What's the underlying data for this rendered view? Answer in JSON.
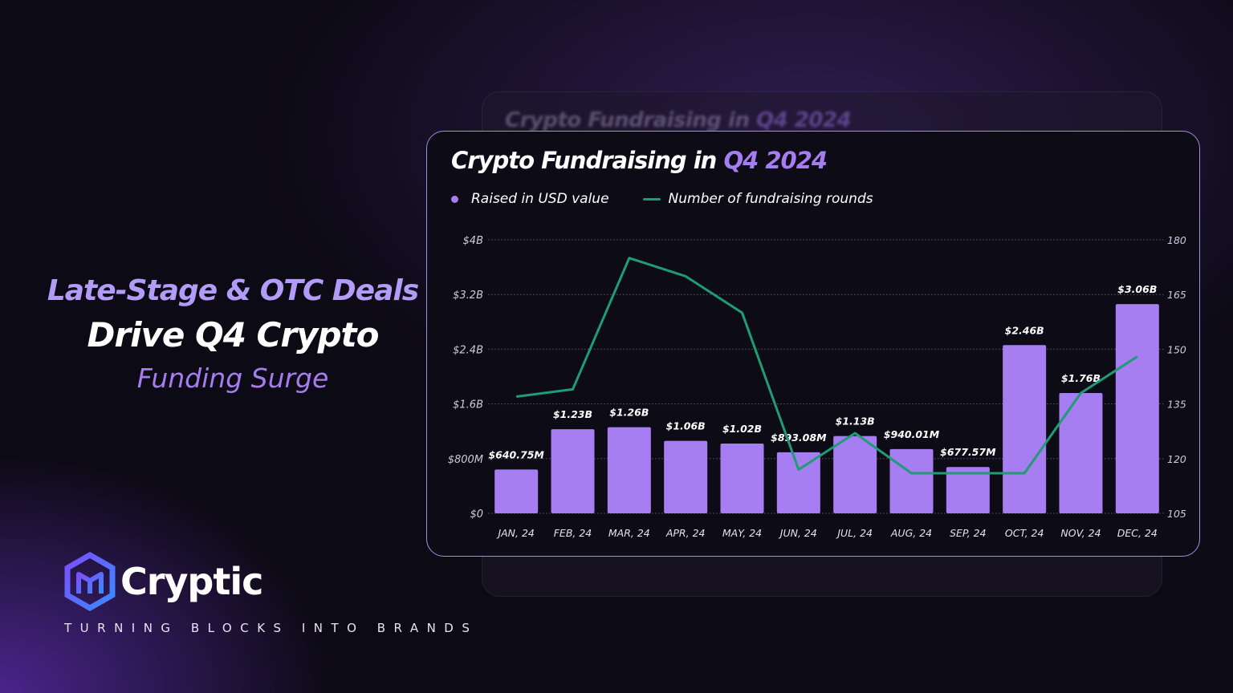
{
  "headline": {
    "line1": "Late-Stage & OTC Deals",
    "line2": "Drive Q4 Crypto",
    "line3": "Funding Surge"
  },
  "brand": {
    "name": "Cryptic",
    "tagline": "TURNING BLOCKS INTO BRANDS"
  },
  "colors": {
    "bar": "#a67ef2",
    "line": "#1f9c74",
    "accent": "#a57df0",
    "card_border": "#a48de6"
  },
  "ghost_card": {
    "title_main": "Crypto Fundraising in",
    "title_accent": "Q4 2024"
  },
  "chart_data": {
    "type": "bar",
    "title_main": "Crypto Fundraising in",
    "title_accent": "Q4 2024",
    "categories": [
      "JAN, 24",
      "FEB, 24",
      "MAR, 24",
      "APR, 24",
      "MAY, 24",
      "JUN, 24",
      "JUL, 24",
      "AUG, 24",
      "SEP, 24",
      "OCT, 24",
      "NOV, 24",
      "DEC, 24"
    ],
    "series": [
      {
        "name": "Raised in USD value",
        "type": "bar",
        "axis": "left",
        "values": [
          640.75,
          1230,
          1260,
          1060,
          1020,
          893.08,
          1130,
          940.01,
          677.57,
          2460,
          1760,
          3060
        ],
        "unit": "USD millions",
        "labels": [
          "$640.75M",
          "$1.23B",
          "$1.26B",
          "$1.06B",
          "$1.02B",
          "$893.08M",
          "$1.13B",
          "$940.01M",
          "$677.57M",
          "$2.46B",
          "$1.76B",
          "$3.06B"
        ]
      },
      {
        "name": "Number of fundraising rounds",
        "type": "line",
        "axis": "right",
        "values": [
          137,
          139,
          175,
          170,
          160,
          117,
          127,
          116,
          116,
          116,
          138,
          148
        ]
      }
    ],
    "y_left": {
      "ticks": [
        0,
        800,
        1600,
        2400,
        3200,
        4000
      ],
      "tick_labels": [
        "$0",
        "$800M",
        "$1.6B",
        "$2.4B",
        "$3.2B",
        "$4B"
      ],
      "range": [
        0,
        4000
      ]
    },
    "y_right": {
      "ticks": [
        105,
        120,
        135,
        150,
        165,
        180
      ],
      "tick_labels": [
        "105",
        "120",
        "135",
        "150",
        "165",
        "180"
      ],
      "range": [
        105,
        180
      ]
    },
    "legend_position": "top-left",
    "grid": "horizontal dotted"
  }
}
